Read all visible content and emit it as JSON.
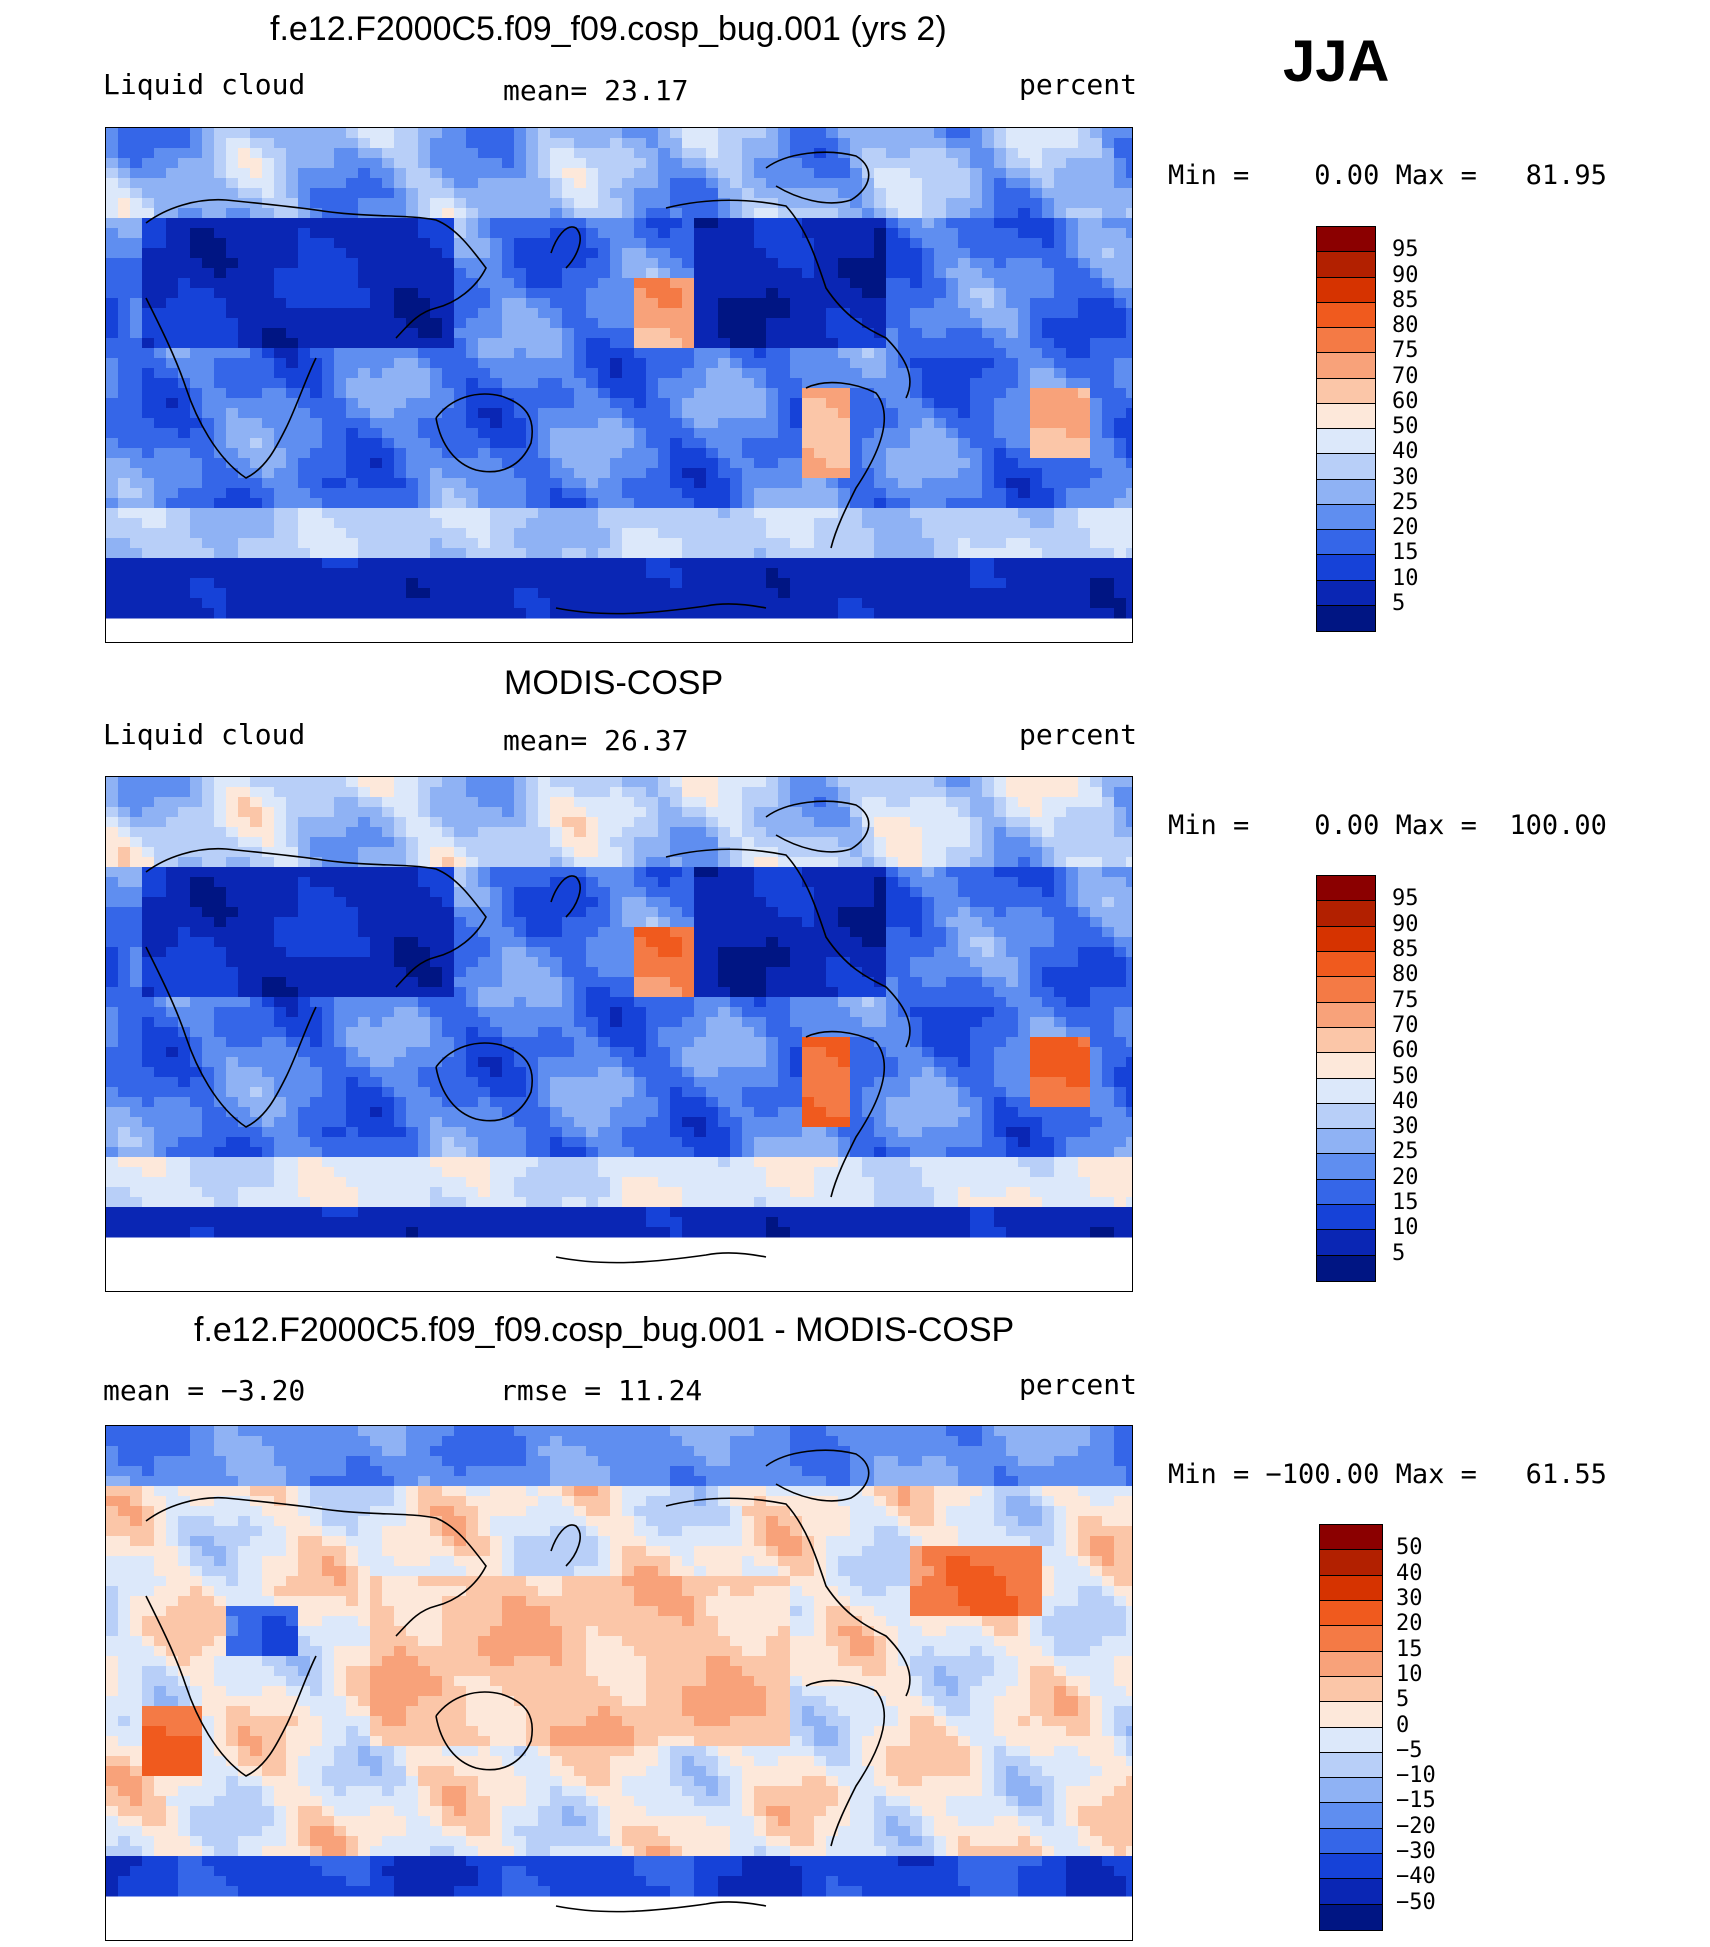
{
  "season": "JJA",
  "panels": [
    {
      "title": "f.e12.F2000C5.f09_f09.cosp_bug.001 (yrs 2)",
      "left_label": "Liquid cloud",
      "center_label": "mean=   23.17",
      "right_label": "percent",
      "minmax": "Min =    0.00 Max =   81.95",
      "colorbar_labels": [
        "95",
        "90",
        "85",
        "80",
        "75",
        "70",
        "60",
        "50",
        "40",
        "30",
        "25",
        "20",
        "15",
        "10",
        "5"
      ],
      "colorbar_colors": [
        "#8b0000",
        "#b22000",
        "#d63300",
        "#f05a1e",
        "#f47a45",
        "#f8a27a",
        "#fbc6a8",
        "#fde8da",
        "#dce8fa",
        "#b8cff8",
        "#8fb2f4",
        "#5f8ef0",
        "#3566e8",
        "#1642d8",
        "#0a26b4",
        "#001583"
      ],
      "style": "model"
    },
    {
      "title": "MODIS-COSP",
      "left_label": "Liquid cloud",
      "center_label": "mean=   26.37",
      "right_label": "percent",
      "minmax": "Min =    0.00 Max =  100.00",
      "colorbar_labels": [
        "95",
        "90",
        "85",
        "80",
        "75",
        "70",
        "60",
        "50",
        "40",
        "30",
        "25",
        "20",
        "15",
        "10",
        "5"
      ],
      "colorbar_colors": [
        "#8b0000",
        "#b22000",
        "#d63300",
        "#f05a1e",
        "#f47a45",
        "#f8a27a",
        "#fbc6a8",
        "#fde8da",
        "#dce8fa",
        "#b8cff8",
        "#8fb2f4",
        "#5f8ef0",
        "#3566e8",
        "#1642d8",
        "#0a26b4",
        "#001583"
      ],
      "style": "obs"
    },
    {
      "title": "f.e12.F2000C5.f09_f09.cosp_bug.001 - MODIS-COSP",
      "left_label": "mean =   −3.20",
      "center_label": "rmse =   11.24",
      "right_label": "percent",
      "minmax": "Min = −100.00 Max =   61.55",
      "colorbar_labels": [
        "50",
        "40",
        "30",
        "20",
        "15",
        "10",
        "5",
        "0",
        "−5",
        "−10",
        "−15",
        "−20",
        "−30",
        "−40",
        "−50"
      ],
      "colorbar_colors": [
        "#8b0000",
        "#b22000",
        "#d63300",
        "#f05a1e",
        "#f47a45",
        "#f8a27a",
        "#fbc6a8",
        "#fde8da",
        "#dce8fa",
        "#b8cff8",
        "#8fb2f4",
        "#5f8ef0",
        "#3566e8",
        "#1642d8",
        "#0a26b4",
        "#001583"
      ],
      "style": "diff"
    }
  ]
}
